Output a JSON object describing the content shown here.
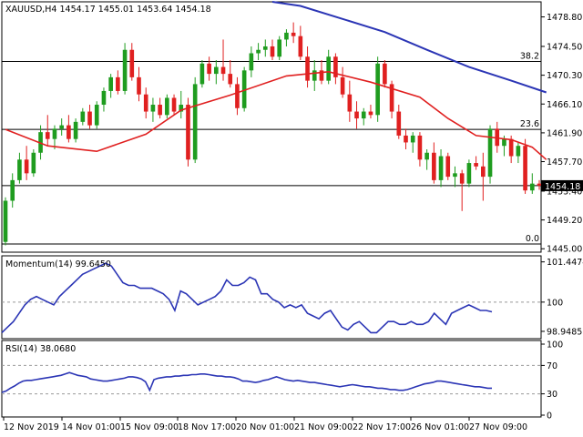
{
  "chart_data": [
    {
      "type": "candlestick",
      "header": "XAUUSD,H4  1454.17 1455.01 1453.64 1454.18",
      "ylim": [
        1444.5,
        1481.0
      ],
      "y_ticks": [
        "1478.80",
        "1474.50",
        "1470.30",
        "1466.10",
        "1461.90",
        "1457.70",
        "1453.40",
        "1449.20",
        "1445.00"
      ],
      "last_price": "1454.18",
      "fib_levels": [
        {
          "label": "38.2",
          "value": 1472.3
        },
        {
          "label": "23.6",
          "value": 1462.4
        },
        {
          "label": "0.0",
          "value": 1445.7
        }
      ],
      "horizontal_line": 1454.2,
      "candles": [
        {
          "o": 1446.0,
          "h": 1452.5,
          "l": 1445.5,
          "c": 1452.0
        },
        {
          "o": 1452.0,
          "h": 1456.0,
          "l": 1451.0,
          "c": 1455.0
        },
        {
          "o": 1455.0,
          "h": 1459.0,
          "l": 1454.5,
          "c": 1458.0
        },
        {
          "o": 1458.0,
          "h": 1460.0,
          "l": 1455.0,
          "c": 1456.0
        },
        {
          "o": 1456.0,
          "h": 1459.5,
          "l": 1455.5,
          "c": 1459.0
        },
        {
          "o": 1459.0,
          "h": 1463.0,
          "l": 1458.0,
          "c": 1462.0
        },
        {
          "o": 1462.0,
          "h": 1464.5,
          "l": 1460.0,
          "c": 1461.0
        },
        {
          "o": 1461.0,
          "h": 1463.0,
          "l": 1459.5,
          "c": 1462.5
        },
        {
          "o": 1462.5,
          "h": 1464.0,
          "l": 1461.5,
          "c": 1463.0
        },
        {
          "o": 1463.0,
          "h": 1464.5,
          "l": 1460.5,
          "c": 1461.0
        },
        {
          "o": 1461.0,
          "h": 1464.0,
          "l": 1460.5,
          "c": 1463.5
        },
        {
          "o": 1463.5,
          "h": 1465.5,
          "l": 1463.0,
          "c": 1465.0
        },
        {
          "o": 1465.0,
          "h": 1466.0,
          "l": 1462.5,
          "c": 1463.0
        },
        {
          "o": 1463.0,
          "h": 1466.5,
          "l": 1462.5,
          "c": 1466.0
        },
        {
          "o": 1466.0,
          "h": 1468.5,
          "l": 1465.0,
          "c": 1468.0
        },
        {
          "o": 1468.0,
          "h": 1470.5,
          "l": 1467.0,
          "c": 1470.0
        },
        {
          "o": 1470.0,
          "h": 1471.0,
          "l": 1467.5,
          "c": 1468.0
        },
        {
          "o": 1468.0,
          "h": 1475.0,
          "l": 1467.5,
          "c": 1474.0
        },
        {
          "o": 1474.0,
          "h": 1475.0,
          "l": 1469.5,
          "c": 1470.0
        },
        {
          "o": 1470.0,
          "h": 1471.5,
          "l": 1466.5,
          "c": 1467.5
        },
        {
          "o": 1467.5,
          "h": 1468.5,
          "l": 1464.0,
          "c": 1465.0
        },
        {
          "o": 1465.0,
          "h": 1467.0,
          "l": 1463.5,
          "c": 1466.0
        },
        {
          "o": 1466.0,
          "h": 1467.0,
          "l": 1464.0,
          "c": 1464.5
        },
        {
          "o": 1464.5,
          "h": 1467.5,
          "l": 1464.0,
          "c": 1467.0
        },
        {
          "o": 1467.0,
          "h": 1467.5,
          "l": 1464.5,
          "c": 1465.0
        },
        {
          "o": 1465.0,
          "h": 1468.0,
          "l": 1464.0,
          "c": 1466.0
        },
        {
          "o": 1466.0,
          "h": 1467.0,
          "l": 1457.0,
          "c": 1458.0
        },
        {
          "o": 1458.0,
          "h": 1470.0,
          "l": 1457.5,
          "c": 1469.0
        },
        {
          "o": 1469.0,
          "h": 1472.5,
          "l": 1468.5,
          "c": 1472.0
        },
        {
          "o": 1472.0,
          "h": 1473.0,
          "l": 1469.5,
          "c": 1470.5
        },
        {
          "o": 1470.5,
          "h": 1472.5,
          "l": 1469.0,
          "c": 1471.5
        },
        {
          "o": 1471.5,
          "h": 1475.5,
          "l": 1469.5,
          "c": 1470.5
        },
        {
          "o": 1470.5,
          "h": 1472.5,
          "l": 1468.5,
          "c": 1469.0
        },
        {
          "o": 1469.0,
          "h": 1470.0,
          "l": 1464.5,
          "c": 1465.5
        },
        {
          "o": 1465.5,
          "h": 1471.5,
          "l": 1465.0,
          "c": 1471.0
        },
        {
          "o": 1471.0,
          "h": 1474.5,
          "l": 1470.0,
          "c": 1473.5
        },
        {
          "o": 1473.5,
          "h": 1475.0,
          "l": 1472.5,
          "c": 1474.0
        },
        {
          "o": 1474.0,
          "h": 1475.5,
          "l": 1473.0,
          "c": 1474.5
        },
        {
          "o": 1474.5,
          "h": 1475.5,
          "l": 1472.5,
          "c": 1473.0
        },
        {
          "o": 1473.0,
          "h": 1476.0,
          "l": 1472.5,
          "c": 1475.5
        },
        {
          "o": 1475.5,
          "h": 1477.0,
          "l": 1474.5,
          "c": 1476.5
        },
        {
          "o": 1476.5,
          "h": 1478.0,
          "l": 1475.0,
          "c": 1476.0
        },
        {
          "o": 1476.0,
          "h": 1477.5,
          "l": 1472.5,
          "c": 1473.0
        },
        {
          "o": 1473.0,
          "h": 1474.5,
          "l": 1468.5,
          "c": 1469.5
        },
        {
          "o": 1469.5,
          "h": 1472.5,
          "l": 1468.0,
          "c": 1471.0
        },
        {
          "o": 1471.0,
          "h": 1472.5,
          "l": 1469.0,
          "c": 1469.5
        },
        {
          "o": 1469.5,
          "h": 1474.0,
          "l": 1469.0,
          "c": 1473.0
        },
        {
          "o": 1473.0,
          "h": 1473.5,
          "l": 1469.0,
          "c": 1470.0
        },
        {
          "o": 1470.0,
          "h": 1471.5,
          "l": 1467.0,
          "c": 1467.5
        },
        {
          "o": 1467.5,
          "h": 1469.5,
          "l": 1463.5,
          "c": 1465.0
        },
        {
          "o": 1465.0,
          "h": 1466.5,
          "l": 1462.5,
          "c": 1464.0
        },
        {
          "o": 1464.0,
          "h": 1465.5,
          "l": 1463.0,
          "c": 1465.0
        },
        {
          "o": 1465.0,
          "h": 1466.0,
          "l": 1464.0,
          "c": 1464.5
        },
        {
          "o": 1464.5,
          "h": 1473.0,
          "l": 1463.5,
          "c": 1472.0
        },
        {
          "o": 1472.0,
          "h": 1472.5,
          "l": 1468.5,
          "c": 1469.0
        },
        {
          "o": 1469.0,
          "h": 1469.5,
          "l": 1464.0,
          "c": 1465.0
        },
        {
          "o": 1465.0,
          "h": 1466.0,
          "l": 1461.0,
          "c": 1461.5
        },
        {
          "o": 1461.5,
          "h": 1462.5,
          "l": 1459.5,
          "c": 1460.5
        },
        {
          "o": 1460.5,
          "h": 1462.0,
          "l": 1459.0,
          "c": 1461.5
        },
        {
          "o": 1461.5,
          "h": 1462.0,
          "l": 1457.0,
          "c": 1458.0
        },
        {
          "o": 1458.0,
          "h": 1459.5,
          "l": 1456.5,
          "c": 1459.0
        },
        {
          "o": 1459.0,
          "h": 1460.5,
          "l": 1454.5,
          "c": 1455.0
        },
        {
          "o": 1455.0,
          "h": 1459.5,
          "l": 1454.0,
          "c": 1458.5
        },
        {
          "o": 1458.5,
          "h": 1459.0,
          "l": 1455.0,
          "c": 1455.5
        },
        {
          "o": 1455.5,
          "h": 1457.0,
          "l": 1454.0,
          "c": 1456.0
        },
        {
          "o": 1456.0,
          "h": 1456.5,
          "l": 1450.5,
          "c": 1454.5
        },
        {
          "o": 1454.5,
          "h": 1458.0,
          "l": 1454.0,
          "c": 1457.5
        },
        {
          "o": 1457.5,
          "h": 1458.5,
          "l": 1456.5,
          "c": 1457.0
        },
        {
          "o": 1457.0,
          "h": 1459.0,
          "l": 1452.0,
          "c": 1455.5
        },
        {
          "o": 1455.5,
          "h": 1463.0,
          "l": 1454.5,
          "c": 1462.5
        },
        {
          "o": 1462.5,
          "h": 1463.5,
          "l": 1459.0,
          "c": 1460.0
        },
        {
          "o": 1460.0,
          "h": 1461.5,
          "l": 1458.5,
          "c": 1461.0
        },
        {
          "o": 1461.0,
          "h": 1461.5,
          "l": 1457.5,
          "c": 1458.5
        },
        {
          "o": 1458.5,
          "h": 1460.5,
          "l": 1457.5,
          "c": 1460.0
        },
        {
          "o": 1460.0,
          "h": 1461.0,
          "l": 1453.0,
          "c": 1453.5
        },
        {
          "o": 1453.5,
          "h": 1456.0,
          "l": 1453.0,
          "c": 1454.5
        },
        {
          "o": 1454.5,
          "h": 1455.0,
          "l": 1453.6,
          "c": 1454.2
        }
      ],
      "ma_fast": [
        {
          "i": 0,
          "v": 1462.4
        },
        {
          "i": 6,
          "v": 1460.0
        },
        {
          "i": 13,
          "v": 1459.2
        },
        {
          "i": 20,
          "v": 1461.7
        },
        {
          "i": 25,
          "v": 1465.2
        },
        {
          "i": 32,
          "v": 1467.4
        },
        {
          "i": 40,
          "v": 1470.2
        },
        {
          "i": 46,
          "v": 1470.8
        },
        {
          "i": 52,
          "v": 1469.3
        },
        {
          "i": 59,
          "v": 1467.1
        },
        {
          "i": 63,
          "v": 1464.0
        },
        {
          "i": 67,
          "v": 1461.5
        },
        {
          "i": 72,
          "v": 1460.9
        },
        {
          "i": 75,
          "v": 1459.8
        },
        {
          "i": 77,
          "v": 1458.0
        }
      ],
      "ma_slow": [
        {
          "i": 38,
          "v": 1481.0
        },
        {
          "i": 42,
          "v": 1480.4
        },
        {
          "i": 48,
          "v": 1478.5
        },
        {
          "i": 54,
          "v": 1476.6
        },
        {
          "i": 60,
          "v": 1474.0
        },
        {
          "i": 66,
          "v": 1471.5
        },
        {
          "i": 72,
          "v": 1469.5
        },
        {
          "i": 77,
          "v": 1467.8
        }
      ],
      "x_labels": [
        "12 Nov 2019",
        "14 Nov 01:00",
        "15 Nov 09:00",
        "18 Nov 17:00",
        "20 Nov 01:00",
        "21 Nov 09:00",
        "22 Nov 17:00",
        "26 Nov 01:00",
        "27 Nov 09:00"
      ]
    },
    {
      "type": "line",
      "title": "Momentum(14) 99.6450",
      "ylim": [
        98.75,
        101.6
      ],
      "y_ticks": [
        "101.4474",
        "100",
        "98.9485"
      ],
      "reference_line": 100,
      "values": [
        98.9,
        99.1,
        99.3,
        99.6,
        99.9,
        100.1,
        100.2,
        100.1,
        100.0,
        99.9,
        100.2,
        100.4,
        100.6,
        100.8,
        101.0,
        101.1,
        101.2,
        101.3,
        101.4,
        101.3,
        101.0,
        100.7,
        100.6,
        100.6,
        100.5,
        100.5,
        100.5,
        100.4,
        100.3,
        100.1,
        99.7,
        100.4,
        100.3,
        100.1,
        99.9,
        100.0,
        100.1,
        100.2,
        100.4,
        100.8,
        100.6,
        100.6,
        100.7,
        100.9,
        100.8,
        100.3,
        100.3,
        100.1,
        100.0,
        99.8,
        99.9,
        99.8,
        99.9,
        99.6,
        99.5,
        99.4,
        99.6,
        99.7,
        99.4,
        99.1,
        99.0,
        99.2,
        99.3,
        99.1,
        98.9,
        98.9,
        99.1,
        99.3,
        99.3,
        99.2,
        99.2,
        99.3,
        99.2,
        99.2,
        99.3,
        99.6,
        99.4,
        99.2,
        99.6,
        99.7,
        99.8,
        99.9,
        99.8,
        99.7,
        99.7,
        99.65
      ],
      "extra_points_note_omit": ""
    },
    {
      "type": "line",
      "title": "RSI(14) 38.0680",
      "ylim": [
        0,
        100
      ],
      "y_ticks": [
        "100",
        "70",
        "30",
        "0"
      ],
      "levels": [
        70,
        30
      ],
      "values": [
        32,
        34,
        38,
        41,
        45,
        48,
        49,
        49,
        50,
        51,
        52,
        53,
        54,
        55,
        56,
        58,
        60,
        58,
        56,
        55,
        54,
        51,
        50,
        49,
        48,
        48,
        49,
        50,
        51,
        52,
        54,
        54,
        53,
        51,
        47,
        35,
        50,
        52,
        53,
        54,
        54,
        55,
        55,
        56,
        56,
        57,
        57,
        58,
        58,
        57,
        56,
        55,
        55,
        54,
        54,
        53,
        51,
        48,
        48,
        47,
        46,
        47,
        49,
        50,
        52,
        54,
        52,
        50,
        49,
        48,
        49,
        48,
        47,
        46,
        46,
        45,
        44,
        43,
        42,
        41,
        40,
        41,
        42,
        43,
        42,
        41,
        40,
        40,
        39,
        38,
        38,
        37,
        36,
        36,
        35,
        35,
        36,
        38,
        40,
        42,
        44,
        45,
        46,
        48,
        48,
        47,
        46,
        45,
        44,
        43,
        42,
        41,
        40,
        40,
        39,
        38,
        38
      ]
    }
  ]
}
